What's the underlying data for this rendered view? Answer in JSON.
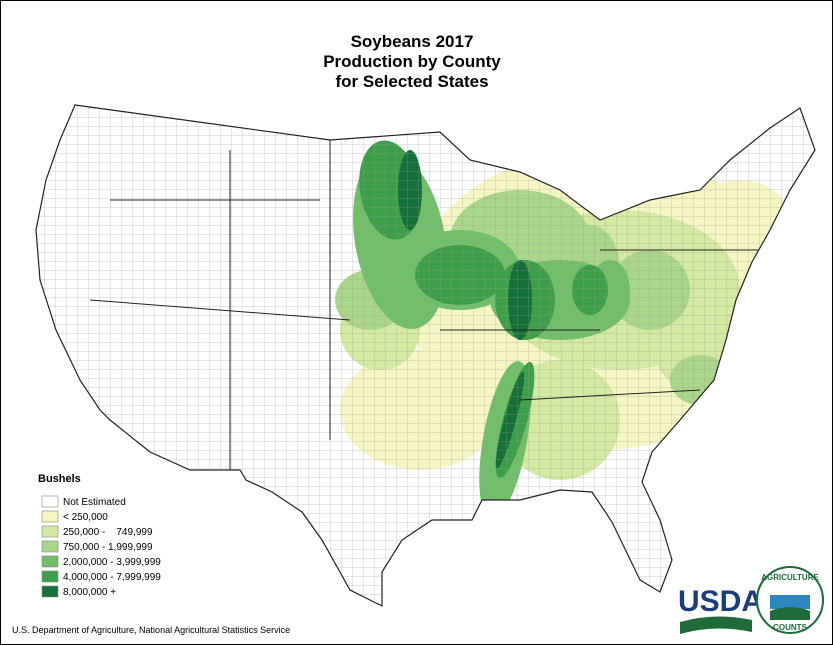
{
  "title": [
    "Soybeans 2017",
    "Production by County",
    "for Selected States"
  ],
  "legend": {
    "title": "Bushels",
    "items": [
      {
        "label": "Not Estimated",
        "color": "#ffffff"
      },
      {
        "label": "< 250,000",
        "color": "#f6f6c4"
      },
      {
        "label": "250,000 -    749,999",
        "color": "#d4e9a2"
      },
      {
        "label": "750,000 - 1,999,999",
        "color": "#a9d68b"
      },
      {
        "label": "2,000,000 - 3,999,999",
        "color": "#72bf69"
      },
      {
        "label": "4,000,000 - 7,999,999",
        "color": "#3e9f4b"
      },
      {
        "label": "8,000,000 +",
        "color": "#17703a"
      }
    ]
  },
  "footer": "U.S. Department of Agriculture, National Agricultural Statistics Service",
  "logos": {
    "usda": "USDA",
    "seal_top": "AGRICULTURE",
    "seal_bottom": "COUNTS"
  }
}
